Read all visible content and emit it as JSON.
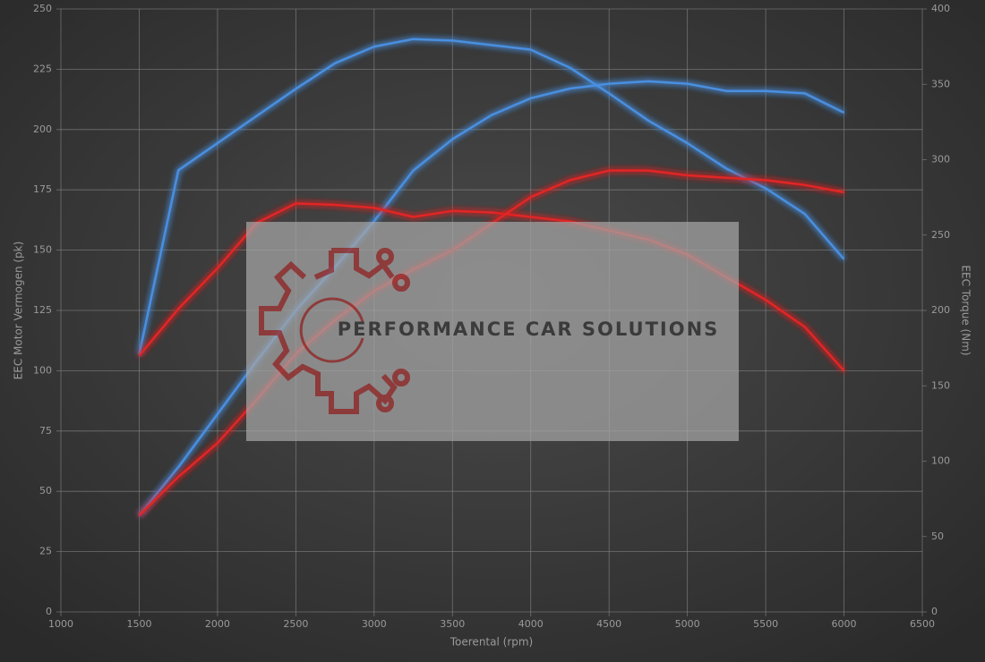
{
  "chart_data": {
    "type": "line",
    "x_label": "Toerental (rpm)",
    "y_label": "EEC Motor Vermogen (pk)",
    "y2_label": "EEC Torque (Nm)",
    "watermark": "PERFORMANCE CAR SOLUTIONS",
    "x": [
      1500,
      1750,
      2000,
      2250,
      2500,
      2750,
      3000,
      3250,
      3500,
      3750,
      4000,
      4250,
      4500,
      4750,
      5000,
      5250,
      5500,
      5750,
      6000
    ],
    "series": [
      {
        "color": "#4a8fe0",
        "axis": "y2",
        "values": [
          171,
          293,
          311,
          329,
          347,
          364,
          375,
          380,
          379,
          376,
          373,
          361,
          344,
          326,
          311,
          294,
          281,
          264,
          234
        ]
      },
      {
        "color": "#4a8fe0",
        "values": [
          40,
          60,
          82,
          104,
          125,
          143,
          162,
          183,
          196,
          206,
          213,
          217,
          219,
          220,
          219,
          216,
          216,
          215,
          207
        ]
      },
      {
        "color": "#e02828",
        "axis": "y2",
        "values": [
          170,
          201,
          228,
          258,
          271,
          270,
          268,
          262,
          266,
          265,
          262,
          259,
          253,
          247,
          237,
          222,
          207,
          189,
          160
        ]
      },
      {
        "color": "#e02828",
        "values": [
          40,
          56,
          70,
          88,
          107,
          121,
          133,
          142,
          150,
          161,
          172,
          179,
          183,
          183,
          181,
          180,
          179,
          177,
          174
        ]
      }
    ],
    "xlim": [
      1000,
      6500
    ],
    "xticks": [
      1000,
      1500,
      2000,
      2500,
      3000,
      3500,
      4000,
      4500,
      5000,
      5500,
      6000,
      6500
    ],
    "ylim": [
      0,
      250
    ],
    "yticks": [
      0,
      25,
      50,
      75,
      100,
      125,
      150,
      175,
      200,
      225,
      250
    ],
    "y2lim": [
      0,
      400
    ],
    "y2ticks": [
      0,
      50,
      100,
      150,
      200,
      250,
      300,
      350,
      400
    ],
    "grid": true
  }
}
